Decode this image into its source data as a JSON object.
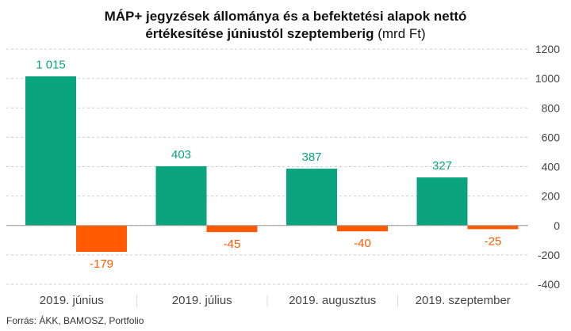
{
  "title": {
    "line1": "MÁP+ jegyzések állománya és a befektetési alapok nettó",
    "line2_bold": "értékesítése júniustól szeptemberig",
    "line2_unit": "(mrd Ft)"
  },
  "source": "Forrás: ÁKK, BAMOSZ, Portfolio",
  "colors": {
    "green": "#0aa57f",
    "orange": "#ff5a00",
    "grid": "#cccccc",
    "axis_text": "#444444"
  },
  "chart_data": {
    "type": "bar",
    "categories": [
      "2019. június",
      "2019. július",
      "2019. augusztus",
      "2019. szeptember"
    ],
    "series": [
      {
        "values": [
          1015,
          403,
          387,
          327
        ],
        "labels": [
          "1 015",
          "403",
          "387",
          "327"
        ]
      },
      {
        "values": [
          -179,
          -45,
          -40,
          -25
        ],
        "labels": [
          "-179",
          "-45",
          "-40",
          "-25"
        ]
      }
    ],
    "ylim": [
      -400,
      1200
    ],
    "yticks": [
      1200,
      1000,
      800,
      600,
      400,
      200,
      0,
      -200,
      -400
    ],
    "grid": true,
    "y_axis_position": "right"
  }
}
